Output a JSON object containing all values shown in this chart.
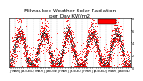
{
  "title": "Milwaukee Weather Solar Radiation\nper Day KW/m2",
  "bg_color": "#ffffff",
  "plot_bg": "#ffffff",
  "grid_color": "#aaaaaa",
  "dot_color1": "#ff0000",
  "dot_color2": "#000000",
  "legend_color": "#ff0000",
  "ylim": [
    0,
    8
  ],
  "ytick_labels": [
    "0",
    "2",
    "4",
    "6",
    "8"
  ],
  "ytick_vals": [
    0,
    2,
    4,
    6,
    8
  ],
  "title_fontsize": 4.2,
  "tick_fontsize": 2.5,
  "n_years": 5
}
